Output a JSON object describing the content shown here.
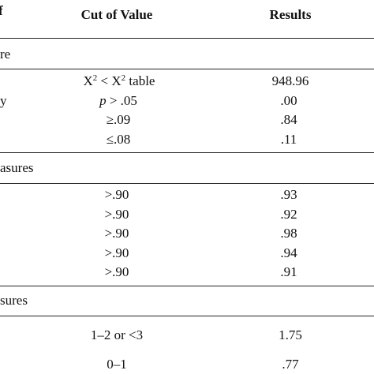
{
  "header": {
    "left": "f",
    "cut": "Cut of Value",
    "results": "Results"
  },
  "sections": [
    {
      "label": "re",
      "rows": [
        {
          "label": null,
          "cut": [
            "X",
            "2",
            " < X",
            "2",
            " table"
          ],
          "result": "948.96"
        },
        {
          "label": "y",
          "cut": [
            "p",
            " > .05"
          ],
          "result": ".00"
        },
        {
          "label": null,
          "cut": [
            "≥.09"
          ],
          "result": ".84"
        },
        {
          "label": null,
          "cut": [
            "≤.08"
          ],
          "result": ".11"
        }
      ]
    },
    {
      "label": "asures",
      "rows": [
        {
          "cut": [
            ">.90"
          ],
          "result": ".93"
        },
        {
          "cut": [
            ">.90"
          ],
          "result": ".92"
        },
        {
          "cut": [
            ">.90"
          ],
          "result": ".98"
        },
        {
          "cut": [
            ">.90"
          ],
          "result": ".94"
        },
        {
          "cut": [
            ">.90"
          ],
          "result": ".91"
        }
      ]
    },
    {
      "label": "sures",
      "rows": [
        {
          "cut": [
            "1–2 or <3"
          ],
          "result": "1.75"
        },
        {
          "cut": [
            "0–1"
          ],
          "result": ".77"
        }
      ]
    }
  ]
}
